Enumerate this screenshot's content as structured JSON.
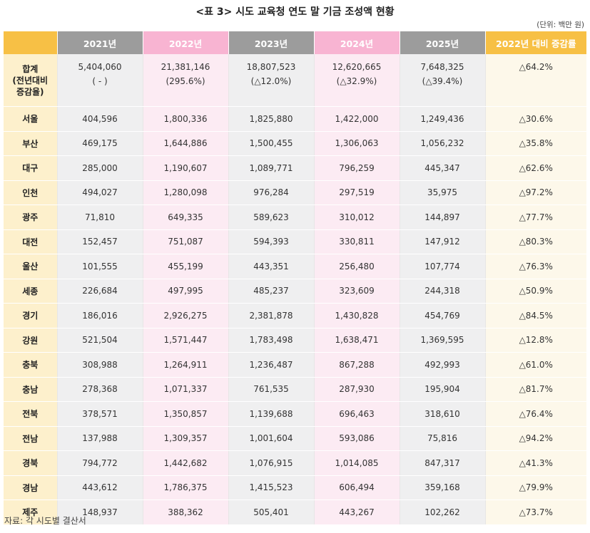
{
  "title": "<표 3> 시도 교육청 연도 말 기금 조성액 현황",
  "unit": "(단위: 백만 원)",
  "headers": [
    "",
    "2021년",
    "2022년",
    "2023년",
    "2024년",
    "2025년",
    "2022년 대비 증감률"
  ],
  "total": {
    "label_lines": [
      "합계",
      "(전년대비",
      "증감율)"
    ],
    "values": [
      "5,404,060",
      "21,381,146",
      "18,807,523",
      "12,620,665",
      "7,648,325"
    ],
    "changes": [
      "( - )",
      "(295.6%)",
      "(△12.0%)",
      "(△32.9%)",
      "(△39.4%)"
    ],
    "rate": "△64.2%"
  },
  "rows": [
    {
      "region": "서울",
      "values": [
        "404,596",
        "1,800,336",
        "1,825,880",
        "1,422,000",
        "1,249,436"
      ],
      "rate": "△30.6%"
    },
    {
      "region": "부산",
      "values": [
        "469,175",
        "1,644,886",
        "1,500,455",
        "1,306,063",
        "1,056,232"
      ],
      "rate": "△35.8%"
    },
    {
      "region": "대구",
      "values": [
        "285,000",
        "1,190,607",
        "1,089,771",
        "796,259",
        "445,347"
      ],
      "rate": "△62.6%"
    },
    {
      "region": "인천",
      "values": [
        "494,027",
        "1,280,098",
        "976,284",
        "297,519",
        "35,975"
      ],
      "rate": "△97.2%"
    },
    {
      "region": "광주",
      "values": [
        "71,810",
        "649,335",
        "589,623",
        "310,012",
        "144,897"
      ],
      "rate": "△77.7%"
    },
    {
      "region": "대전",
      "values": [
        "152,457",
        "751,087",
        "594,393",
        "330,811",
        "147,912"
      ],
      "rate": "△80.3%"
    },
    {
      "region": "울산",
      "values": [
        "101,555",
        "455,199",
        "443,351",
        "256,480",
        "107,774"
      ],
      "rate": "△76.3%"
    },
    {
      "region": "세종",
      "values": [
        "226,684",
        "497,995",
        "485,237",
        "323,609",
        "244,318"
      ],
      "rate": "△50.9%"
    },
    {
      "region": "경기",
      "values": [
        "186,016",
        "2,926,275",
        "2,381,878",
        "1,430,828",
        "454,769"
      ],
      "rate": "△84.5%"
    },
    {
      "region": "강원",
      "values": [
        "521,504",
        "1,571,447",
        "1,783,498",
        "1,638,471",
        "1,369,595"
      ],
      "rate": "△12.8%"
    },
    {
      "region": "충북",
      "values": [
        "308,988",
        "1,264,911",
        "1,236,487",
        "867,288",
        "492,993"
      ],
      "rate": "△61.0%"
    },
    {
      "region": "충남",
      "values": [
        "278,368",
        "1,071,337",
        "761,535",
        "287,930",
        "195,904"
      ],
      "rate": "△81.7%"
    },
    {
      "region": "전북",
      "values": [
        "378,571",
        "1,350,857",
        "1,139,688",
        "696,463",
        "318,610"
      ],
      "rate": "△76.4%"
    },
    {
      "region": "전남",
      "values": [
        "137,988",
        "1,309,357",
        "1,001,604",
        "593,086",
        "75,816"
      ],
      "rate": "△94.2%"
    },
    {
      "region": "경북",
      "values": [
        "794,772",
        "1,442,682",
        "1,076,915",
        "1,014,085",
        "847,317"
      ],
      "rate": "△41.3%"
    },
    {
      "region": "경남",
      "values": [
        "443,612",
        "1,786,375",
        "1,415,523",
        "606,494",
        "359,168"
      ],
      "rate": "△79.9%"
    },
    {
      "region": "제주",
      "values": [
        "148,937",
        "388,362",
        "505,401",
        "443,267",
        "102,262"
      ],
      "rate": "△73.7%"
    }
  ],
  "source": "자료: 각 시도별 결산서"
}
